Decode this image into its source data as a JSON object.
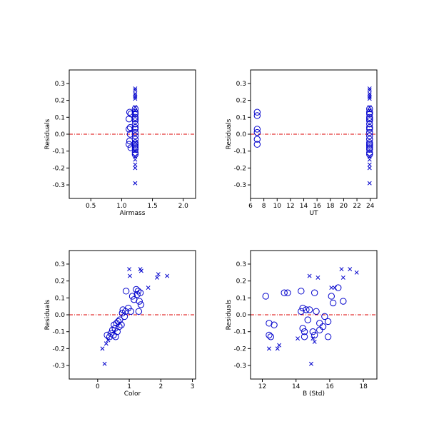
{
  "chart_data": [
    {
      "type": "scatter",
      "xlabel": "Airmass",
      "ylabel": "Residuals",
      "xlim": [
        0.15,
        2.2
      ],
      "ylim": [
        -0.38,
        0.38
      ],
      "xticks": [
        0.5,
        1.0,
        1.5,
        2.0
      ],
      "xtick_labels": [
        "0.5",
        "1.0",
        "1.5",
        "2.0"
      ],
      "yticks": [
        -0.3,
        -0.2,
        -0.1,
        0.0,
        0.1,
        0.2,
        0.3
      ],
      "ytick_labels": [
        "-0.3",
        "-0.2",
        "-0.1",
        "0.0",
        "0.1",
        "0.2",
        "0.3"
      ],
      "zero_line": 0.0,
      "series": [
        {
          "marker": "circle",
          "points": [
            [
              1.13,
              0.13
            ],
            [
              1.15,
              0.12
            ],
            [
              1.12,
              0.09
            ],
            [
              1.14,
              0.04
            ],
            [
              1.12,
              0.03
            ],
            [
              1.14,
              0.0
            ],
            [
              1.13,
              -0.04
            ],
            [
              1.12,
              -0.06
            ],
            [
              1.15,
              -0.08
            ],
            [
              1.22,
              0.15
            ],
            [
              1.22,
              0.13
            ],
            [
              1.22,
              0.12
            ],
            [
              1.22,
              0.1
            ],
            [
              1.22,
              0.09
            ],
            [
              1.22,
              0.08
            ],
            [
              1.22,
              0.06
            ],
            [
              1.22,
              0.04
            ],
            [
              1.22,
              0.03
            ],
            [
              1.22,
              0.01
            ],
            [
              1.22,
              -0.01
            ],
            [
              1.22,
              -0.03
            ],
            [
              1.22,
              -0.05
            ],
            [
              1.22,
              -0.06
            ],
            [
              1.22,
              -0.07
            ],
            [
              1.22,
              -0.08
            ],
            [
              1.22,
              -0.09
            ],
            [
              1.22,
              -0.11
            ],
            [
              1.22,
              -0.12
            ]
          ]
        },
        {
          "marker": "x",
          "points": [
            [
              1.22,
              0.27
            ],
            [
              1.22,
              0.26
            ],
            [
              1.22,
              0.24
            ],
            [
              1.22,
              0.23
            ],
            [
              1.22,
              0.22
            ],
            [
              1.22,
              0.21
            ],
            [
              1.22,
              0.16
            ],
            [
              1.22,
              0.14
            ],
            [
              1.22,
              -0.13
            ],
            [
              1.22,
              -0.15
            ],
            [
              1.22,
              -0.18
            ],
            [
              1.22,
              -0.2
            ],
            [
              1.22,
              -0.29
            ],
            [
              1.22,
              -0.05
            ],
            [
              1.22,
              -0.1
            ]
          ]
        }
      ]
    },
    {
      "type": "scatter",
      "xlabel": "UT",
      "ylabel": "Residuals",
      "xlim": [
        6,
        25
      ],
      "ylim": [
        -0.38,
        0.38
      ],
      "xticks": [
        6,
        8,
        10,
        12,
        14,
        16,
        18,
        20,
        22,
        24
      ],
      "xtick_labels": [
        "6",
        "8",
        "10",
        "12",
        "14",
        "16",
        "18",
        "20",
        "22",
        "24"
      ],
      "yticks": [
        -0.3,
        -0.2,
        -0.1,
        0.0,
        0.1,
        0.2,
        0.3
      ],
      "ytick_labels": [
        "-0.3",
        "-0.2",
        "-0.1",
        "0.0",
        "0.1",
        "0.2",
        "0.3"
      ],
      "zero_line": 0.0,
      "series": [
        {
          "marker": "circle",
          "points": [
            [
              7.0,
              0.13
            ],
            [
              7.0,
              0.11
            ],
            [
              7.0,
              0.03
            ],
            [
              7.0,
              0.01
            ],
            [
              7.0,
              -0.03
            ],
            [
              7.0,
              -0.06
            ],
            [
              23.9,
              0.15
            ],
            [
              23.9,
              0.13
            ],
            [
              23.9,
              0.12
            ],
            [
              23.9,
              0.1
            ],
            [
              23.9,
              0.09
            ],
            [
              23.9,
              0.08
            ],
            [
              23.9,
              0.06
            ],
            [
              23.9,
              0.04
            ],
            [
              23.9,
              0.03
            ],
            [
              23.9,
              0.01
            ],
            [
              23.9,
              -0.01
            ],
            [
              23.9,
              -0.03
            ],
            [
              23.9,
              -0.05
            ],
            [
              23.9,
              -0.06
            ],
            [
              23.9,
              -0.07
            ],
            [
              23.9,
              -0.08
            ],
            [
              23.9,
              -0.09
            ],
            [
              23.9,
              -0.11
            ],
            [
              23.9,
              -0.12
            ]
          ]
        },
        {
          "marker": "x",
          "points": [
            [
              23.9,
              0.27
            ],
            [
              23.9,
              0.26
            ],
            [
              23.9,
              0.24
            ],
            [
              23.9,
              0.23
            ],
            [
              23.9,
              0.22
            ],
            [
              23.9,
              0.21
            ],
            [
              23.9,
              0.16
            ],
            [
              23.9,
              0.14
            ],
            [
              23.9,
              -0.13
            ],
            [
              23.9,
              -0.15
            ],
            [
              23.9,
              -0.18
            ],
            [
              23.9,
              -0.2
            ],
            [
              23.9,
              -0.29
            ]
          ]
        }
      ]
    },
    {
      "type": "scatter",
      "xlabel": "Color",
      "ylabel": "Residuals",
      "xlim": [
        -0.9,
        3.1
      ],
      "ylim": [
        -0.38,
        0.38
      ],
      "xticks": [
        0,
        1,
        2,
        3
      ],
      "xtick_labels": [
        "0",
        "1",
        "2",
        "3"
      ],
      "yticks": [
        -0.3,
        -0.2,
        -0.1,
        0.0,
        0.1,
        0.2,
        0.3
      ],
      "ytick_labels": [
        "-0.3",
        "-0.2",
        "-0.1",
        "0.0",
        "0.1",
        "0.2",
        "0.3"
      ],
      "zero_line": 0.0,
      "series": [
        {
          "marker": "circle",
          "points": [
            [
              0.3,
              -0.12
            ],
            [
              0.38,
              -0.13
            ],
            [
              0.42,
              -0.11
            ],
            [
              0.47,
              -0.09
            ],
            [
              0.5,
              -0.12
            ],
            [
              0.52,
              -0.06
            ],
            [
              0.55,
              -0.08
            ],
            [
              0.57,
              -0.13
            ],
            [
              0.6,
              -0.05
            ],
            [
              0.62,
              -0.1
            ],
            [
              0.65,
              -0.04
            ],
            [
              0.68,
              -0.07
            ],
            [
              0.7,
              -0.03
            ],
            [
              0.75,
              -0.06
            ],
            [
              0.78,
              0.01
            ],
            [
              0.8,
              0.03
            ],
            [
              0.85,
              -0.01
            ],
            [
              0.88,
              0.02
            ],
            [
              0.9,
              0.14
            ],
            [
              0.97,
              0.04
            ],
            [
              1.05,
              0.02
            ],
            [
              1.1,
              0.11
            ],
            [
              1.15,
              0.09
            ],
            [
              1.22,
              0.15
            ],
            [
              1.25,
              0.12
            ],
            [
              1.28,
              0.14
            ],
            [
              1.32,
              0.08
            ],
            [
              1.35,
              0.13
            ],
            [
              1.37,
              0.06
            ],
            [
              1.3,
              0.02
            ]
          ]
        },
        {
          "marker": "x",
          "points": [
            [
              0.15,
              -0.2
            ],
            [
              0.22,
              -0.29
            ],
            [
              0.27,
              -0.17
            ],
            [
              0.33,
              -0.15
            ],
            [
              1.0,
              0.27
            ],
            [
              1.02,
              0.23
            ],
            [
              1.35,
              0.27
            ],
            [
              1.38,
              0.26
            ],
            [
              1.6,
              0.16
            ],
            [
              1.88,
              0.22
            ],
            [
              1.92,
              0.24
            ],
            [
              2.2,
              0.23
            ]
          ]
        }
      ]
    },
    {
      "type": "scatter",
      "xlabel": "B (Std)",
      "ylabel": "Residuals",
      "xlim": [
        11.3,
        18.8
      ],
      "ylim": [
        -0.38,
        0.38
      ],
      "xticks": [
        12,
        14,
        16,
        18
      ],
      "xtick_labels": [
        "12",
        "14",
        "16",
        "18"
      ],
      "yticks": [
        -0.3,
        -0.2,
        -0.1,
        0.0,
        0.1,
        0.2,
        0.3
      ],
      "ytick_labels": [
        "-0.3",
        "-0.2",
        "-0.1",
        "0.0",
        "0.1",
        "0.2",
        "0.3"
      ],
      "zero_line": 0.0,
      "series": [
        {
          "marker": "circle",
          "points": [
            [
              12.2,
              0.11
            ],
            [
              12.4,
              -0.05
            ],
            [
              12.4,
              -0.12
            ],
            [
              12.5,
              -0.13
            ],
            [
              12.7,
              -0.06
            ],
            [
              13.3,
              0.13
            ],
            [
              13.5,
              0.13
            ],
            [
              14.3,
              0.14
            ],
            [
              14.3,
              0.02
            ],
            [
              14.4,
              0.04
            ],
            [
              14.4,
              -0.08
            ],
            [
              14.5,
              -0.1
            ],
            [
              14.5,
              -0.13
            ],
            [
              14.6,
              0.03
            ],
            [
              14.7,
              -0.03
            ],
            [
              14.8,
              0.03
            ],
            [
              15.0,
              -0.1
            ],
            [
              15.1,
              0.13
            ],
            [
              15.1,
              -0.12
            ],
            [
              15.2,
              0.02
            ],
            [
              15.4,
              -0.05
            ],
            [
              15.4,
              -0.09
            ],
            [
              15.6,
              -0.07
            ],
            [
              15.7,
              -0.01
            ],
            [
              15.9,
              -0.04
            ],
            [
              15.9,
              -0.13
            ],
            [
              16.1,
              0.11
            ],
            [
              16.2,
              0.07
            ],
            [
              16.5,
              0.16
            ],
            [
              16.8,
              0.08
            ]
          ]
        },
        {
          "marker": "x",
          "points": [
            [
              12.4,
              -0.2
            ],
            [
              12.9,
              -0.2
            ],
            [
              13.0,
              -0.18
            ],
            [
              14.1,
              -0.14
            ],
            [
              14.8,
              0.23
            ],
            [
              14.9,
              -0.29
            ],
            [
              15.0,
              -0.14
            ],
            [
              15.1,
              -0.16
            ],
            [
              15.3,
              0.22
            ],
            [
              16.1,
              0.16
            ],
            [
              16.3,
              0.16
            ],
            [
              16.7,
              0.27
            ],
            [
              16.8,
              0.22
            ],
            [
              17.2,
              0.27
            ],
            [
              17.6,
              0.25
            ]
          ]
        }
      ]
    }
  ]
}
